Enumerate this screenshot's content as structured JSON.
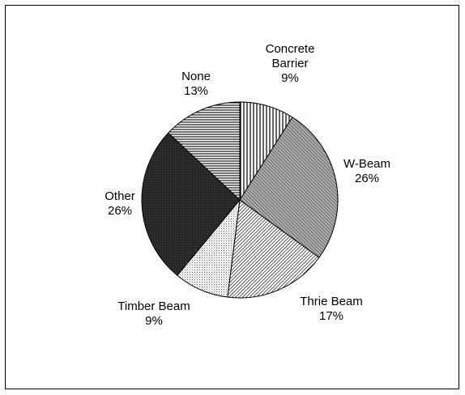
{
  "chart_data": {
    "type": "pie",
    "title": "",
    "start_angle_deg": 0,
    "direction": "clockwise",
    "slices": [
      {
        "label": [
          "Concrete",
          "Barrier"
        ],
        "percent_label": "9%",
        "value": 9,
        "pattern": "vlines"
      },
      {
        "label": [
          "W-Beam"
        ],
        "percent_label": "26%",
        "value": 26,
        "pattern": "wide-diag"
      },
      {
        "label": [
          "Thrie Beam"
        ],
        "percent_label": "17%",
        "value": 17,
        "pattern": "fine-diag"
      },
      {
        "label": [
          "Timber Beam"
        ],
        "percent_label": "9%",
        "value": 9,
        "pattern": "light-dots"
      },
      {
        "label": [
          "Other"
        ],
        "percent_label": "26%",
        "value": 26,
        "pattern": "dark-dots"
      },
      {
        "label": [
          "None"
        ],
        "percent_label": "13%",
        "value": 13,
        "pattern": "hlines"
      }
    ],
    "legend": "none",
    "grid": false,
    "colors": {
      "outline": "#000000",
      "background": "#ffffff"
    }
  }
}
